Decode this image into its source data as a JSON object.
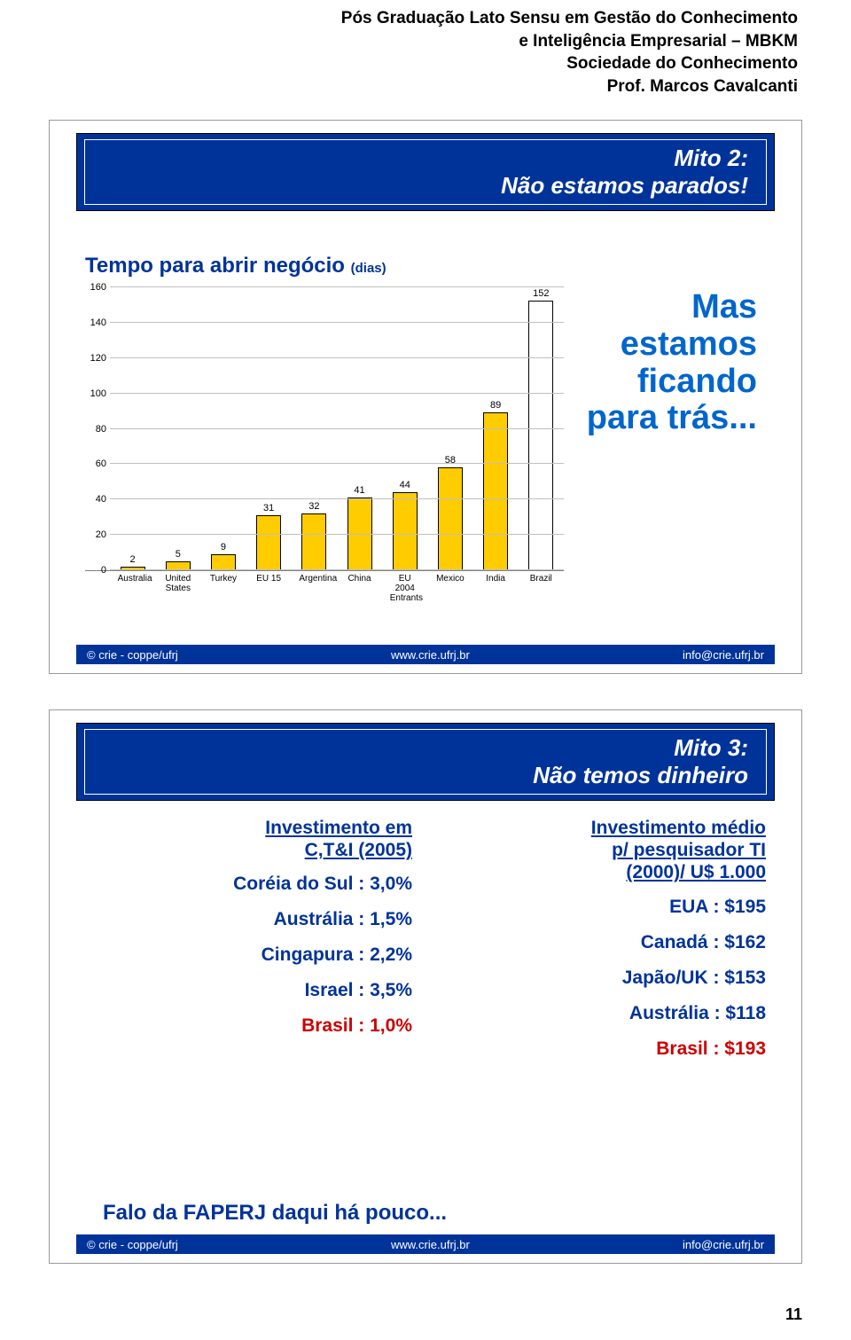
{
  "header": {
    "line1": "Pós Graduação Lato Sensu em Gestão do Conhecimento",
    "line2": "e Inteligência Empresarial – MBKM",
    "line3": "Sociedade do Conhecimento",
    "line4": "Prof. Marcos Cavalcanti"
  },
  "slide1": {
    "title_line1": "Mito 2:",
    "title_line2": "Não estamos parados!",
    "chart": {
      "title_main": "Tempo para abrir negócio ",
      "title_paren": "(dias)",
      "ylim": [
        0,
        160
      ],
      "ytick_step": 20,
      "y_ticks": [
        0,
        20,
        40,
        60,
        80,
        100,
        120,
        140,
        160
      ],
      "grid_color": "#c0c0c0",
      "categories": [
        "Australia",
        "United States",
        "Turkey",
        "EU 15",
        "Argentina",
        "China",
        "EU 2004 Entrants",
        "Mexico",
        "India",
        "Brazil"
      ],
      "values": [
        2,
        5,
        9,
        31,
        32,
        41,
        44,
        58,
        89,
        152
      ],
      "bar_fill": [
        "#ffcc00",
        "#ffcc00",
        "#ffcc00",
        "#ffcc00",
        "#ffcc00",
        "#ffcc00",
        "#ffcc00",
        "#ffcc00",
        "#ffcc00",
        "#ffffff"
      ],
      "bar_border": "#000000"
    },
    "side_text": "Mas estamos ficando para trás..."
  },
  "slide2": {
    "title_line1": "Mito 3:",
    "title_line2": "Não temos dinheiro",
    "left": {
      "heading_l1": "Investimento em",
      "heading_l2": "C,T&I (2005)",
      "rows": [
        {
          "text": "Coréia do Sul : 3,0%",
          "red": false
        },
        {
          "text": "Austrália : 1,5%",
          "red": false
        },
        {
          "text": "Cingapura : 2,2%",
          "red": false
        },
        {
          "text": "Israel : 3,5%",
          "red": false
        },
        {
          "text": "Brasil : 1,0%",
          "red": true
        }
      ]
    },
    "right": {
      "heading_l1": "Investimento médio",
      "heading_l2": "p/ pesquisador TI",
      "heading_l3": "(2000)/ U$ 1.000",
      "rows": [
        {
          "text": "EUA : $195",
          "red": false
        },
        {
          "text": "Canadá : $162",
          "red": false
        },
        {
          "text": "Japão/UK : $153",
          "red": false
        },
        {
          "text": "Austrália : $118",
          "red": false
        },
        {
          "text": "Brasil : $193",
          "red": true
        }
      ]
    },
    "faperj": "Falo da FAPERJ daqui há pouco..."
  },
  "footer": {
    "left": "© crie - coppe/ufrj",
    "center": "www.crie.ufrj.br",
    "right": "info@crie.ufrj.br"
  },
  "page_number": "11"
}
